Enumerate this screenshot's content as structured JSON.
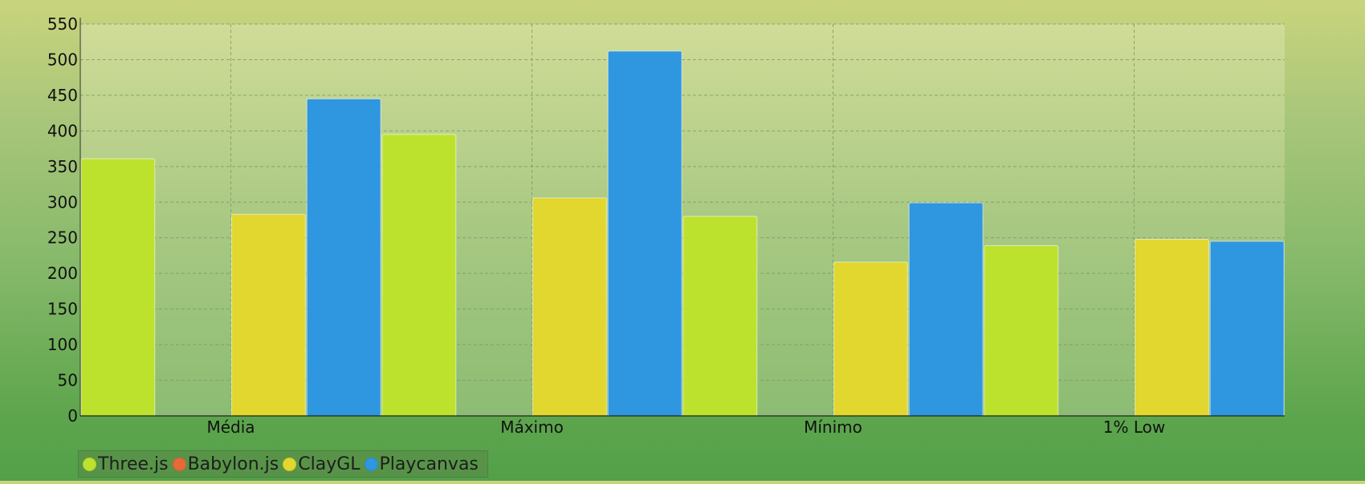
{
  "chart_data": {
    "type": "bar",
    "title": "",
    "xlabel": "",
    "ylabel": "",
    "categories": [
      "Média",
      "Máximo",
      "Mínimo",
      "1% Low"
    ],
    "ylim": [
      0,
      550
    ],
    "yticks": [
      0,
      50,
      100,
      150,
      200,
      250,
      300,
      350,
      400,
      450,
      500,
      550
    ],
    "grid": true,
    "legend_position": "bottom-left",
    "series": [
      {
        "name": "Three.js",
        "color": "#bde22e",
        "values": [
          361,
          395,
          280,
          239
        ]
      },
      {
        "name": "Babylon.js",
        "color": "#e8683a",
        "values": [
          0,
          0,
          0,
          0
        ]
      },
      {
        "name": "ClayGL",
        "color": "#e1d72e",
        "values": [
          283,
          306,
          216,
          248
        ]
      },
      {
        "name": "Playcanvas",
        "color": "#2f96e0",
        "values": [
          445,
          512,
          299,
          245
        ]
      }
    ]
  }
}
